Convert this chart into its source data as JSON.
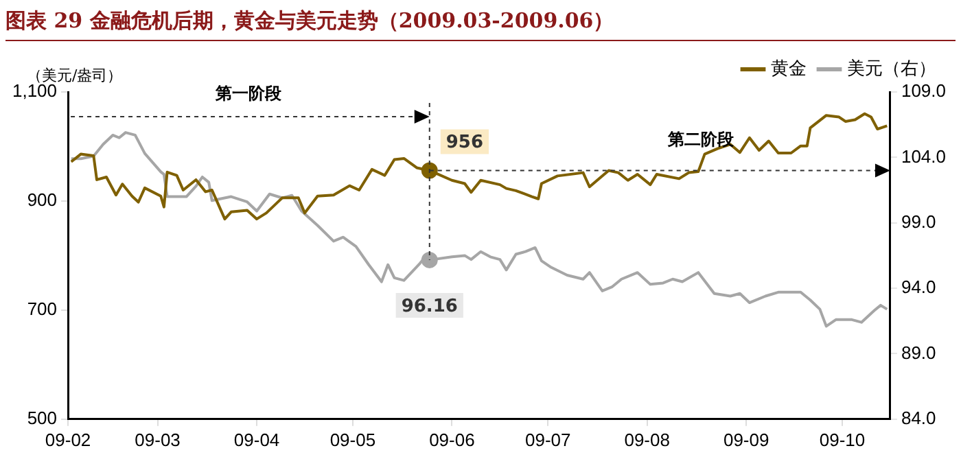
{
  "chart_data": {
    "type": "line",
    "title": "图表 29   金融危机后期，黄金与美元走势（2009.03-2009.06）",
    "ylabel": "（美元/盎司）",
    "legend": "top right",
    "grid": false,
    "marker": "none",
    "line_style": "solid",
    "xlim": [
      "2009-02-01",
      "2009-10-16"
    ],
    "xticks": [
      {
        "value": "2009-02",
        "label": "09-02"
      },
      {
        "value": "2009-03",
        "label": "09-03"
      },
      {
        "value": "2009-04",
        "label": "09-04"
      },
      {
        "value": "2009-05",
        "label": "09-05"
      },
      {
        "value": "2009-06",
        "label": "09-06"
      },
      {
        "value": "2009-07",
        "label": "09-07"
      },
      {
        "value": "2009-08",
        "label": "09-08"
      },
      {
        "value": "2009-09",
        "label": "09-09"
      },
      {
        "value": "2009-10",
        "label": "09-10"
      }
    ],
    "ylim": [
      500,
      1100
    ],
    "yticks": [
      500,
      700,
      900,
      {
        "value": 1100,
        "label": "1,100"
      }
    ],
    "y2lim": [
      84,
      109
    ],
    "y2ticks": [
      {
        "value": 84,
        "label": "84.0"
      },
      {
        "value": 89,
        "label": "89.0"
      },
      {
        "value": 94,
        "label": "94.0"
      },
      {
        "value": 99,
        "label": "99.0"
      },
      {
        "value": 104,
        "label": "104.0"
      },
      {
        "value": 109,
        "label": "109.0"
      }
    ],
    "annotations": [
      "第一阶段",
      "第二阶段"
    ],
    "series": [
      {
        "name": "黄金",
        "color": "#7f6000",
        "x": [
          "2009-02-02",
          "2009-02-05",
          "2009-02-09",
          "2009-02-10",
          "2009-02-13",
          "2009-02-16",
          "2009-02-18",
          "2009-02-21",
          "2009-02-23",
          "2009-02-25",
          "2009-03-02",
          "2009-03-03",
          "2009-03-04",
          "2009-03-07",
          "2009-03-09",
          "2009-03-13",
          "2009-03-16",
          "2009-03-18",
          "2009-03-22",
          "2009-03-24",
          "2009-03-29",
          "2009-04-01",
          "2009-04-04",
          "2009-04-09",
          "2009-04-14",
          "2009-04-16",
          "2009-04-20",
          "2009-04-25",
          "2009-04-30",
          "2009-05-03",
          "2009-05-07",
          "2009-05-11",
          "2009-05-14",
          "2009-05-17",
          "2009-05-21",
          "2009-05-25",
          "2009-06-01",
          "2009-06-05",
          "2009-06-07",
          "2009-06-10",
          "2009-06-16",
          "2009-06-18",
          "2009-06-21",
          "2009-06-26",
          "2009-06-28",
          "2009-06-29",
          "2009-07-04",
          "2009-07-12",
          "2009-07-14",
          "2009-07-20",
          "2009-07-23",
          "2009-07-26",
          "2009-07-29",
          "2009-08-02",
          "2009-08-04",
          "2009-08-11",
          "2009-08-14",
          "2009-08-17",
          "2009-08-19",
          "2009-08-23",
          "2009-08-27",
          "2009-08-30",
          "2009-09-02",
          "2009-09-05",
          "2009-09-08",
          "2009-09-11",
          "2009-09-15",
          "2009-09-18",
          "2009-09-20",
          "2009-09-21",
          "2009-09-26",
          "2009-09-30",
          "2009-10-02",
          "2009-10-05",
          "2009-10-08",
          "2009-10-10",
          "2009-10-12",
          "2009-10-15"
        ],
        "values": [
          972,
          986,
          983,
          939,
          944,
          911,
          931,
          909,
          898,
          924,
          909,
          889,
          953,
          947,
          920,
          939,
          917,
          920,
          867,
          880,
          883,
          867,
          878,
          906,
          906,
          878,
          909,
          911,
          928,
          920,
          958,
          947,
          976,
          978,
          961,
          956,
          938,
          932,
          916,
          938,
          930,
          923,
          919,
          908,
          904,
          932,
          946,
          952,
          926,
          956,
          952,
          938,
          949,
          930,
          949,
          941,
          952,
          954,
          986,
          996,
          1004,
          989,
          1016,
          993,
          1010,
          988,
          988,
          1001,
          1001,
          1034,
          1057,
          1054,
          1046,
          1049,
          1060,
          1054,
          1032,
          1038
        ],
        "value_labels": [
          null,
          null,
          null,
          null,
          null,
          null,
          null,
          null,
          null,
          null,
          null,
          null,
          null,
          null,
          null,
          null,
          null,
          null,
          null,
          null,
          null,
          null,
          null,
          null,
          null,
          null,
          null,
          null,
          null,
          null,
          null,
          null,
          null,
          null,
          null,
          "956",
          null,
          null,
          null,
          null,
          null,
          null,
          null,
          null,
          null,
          null,
          null,
          null,
          null,
          null,
          null,
          null,
          null,
          null,
          null,
          null,
          null,
          null,
          null,
          null,
          null,
          null,
          null,
          null,
          null,
          null,
          null,
          null,
          null,
          null,
          null,
          null,
          null,
          null,
          null,
          null,
          null,
          null
        ]
      },
      {
        "name": "美元（右）",
        "color": "#a6a6a6",
        "axis": "y2",
        "x": [
          "2009-02-02",
          "2009-02-05",
          "2009-02-09",
          "2009-02-12",
          "2009-02-15",
          "2009-02-17",
          "2009-02-19",
          "2009-02-22",
          "2009-02-25",
          "2009-03-02",
          "2009-03-03",
          "2009-03-04",
          "2009-03-10",
          "2009-03-13",
          "2009-03-15",
          "2009-03-17",
          "2009-03-18",
          "2009-03-24",
          "2009-03-29",
          "2009-04-01",
          "2009-04-05",
          "2009-04-09",
          "2009-04-12",
          "2009-04-15",
          "2009-04-20",
          "2009-04-25",
          "2009-04-28",
          "2009-05-02",
          "2009-05-06",
          "2009-05-10",
          "2009-05-12",
          "2009-05-14",
          "2009-05-17",
          "2009-05-22",
          "2009-05-24",
          "2009-05-25",
          "2009-06-01",
          "2009-06-05",
          "2009-06-07",
          "2009-06-10",
          "2009-06-13",
          "2009-06-16",
          "2009-06-18",
          "2009-06-21",
          "2009-06-24",
          "2009-06-27",
          "2009-06-29",
          "2009-07-02",
          "2009-07-07",
          "2009-07-12",
          "2009-07-14",
          "2009-07-18",
          "2009-07-21",
          "2009-07-24",
          "2009-07-29",
          "2009-08-02",
          "2009-08-06",
          "2009-08-09",
          "2009-08-12",
          "2009-08-17",
          "2009-08-22",
          "2009-08-27",
          "2009-08-30",
          "2009-09-02",
          "2009-09-07",
          "2009-09-11",
          "2009-09-18",
          "2009-09-21",
          "2009-09-24",
          "2009-09-26",
          "2009-09-29",
          "2009-10-04",
          "2009-10-07",
          "2009-10-11",
          "2009-10-13",
          "2009-10-15"
        ],
        "values": [
          103.9,
          103.9,
          104.1,
          105.0,
          105.7,
          105.5,
          105.9,
          105.7,
          104.3,
          102.9,
          102.7,
          101.0,
          101.0,
          101.8,
          102.5,
          102.1,
          100.7,
          101.0,
          100.6,
          99.9,
          101.2,
          100.9,
          101.1,
          99.9,
          98.8,
          97.6,
          97.9,
          97.2,
          95.8,
          94.5,
          95.8,
          94.8,
          94.6,
          95.9,
          96.5,
          96.16,
          96.4,
          96.5,
          96.2,
          96.8,
          96.4,
          96.2,
          95.4,
          96.6,
          96.8,
          97.1,
          96.1,
          95.6,
          95.0,
          94.7,
          95.2,
          93.8,
          94.1,
          94.7,
          95.2,
          94.3,
          94.4,
          94.7,
          94.5,
          95.2,
          93.6,
          93.4,
          93.6,
          92.9,
          93.4,
          93.7,
          93.7,
          93.1,
          92.4,
          91.1,
          91.6,
          91.6,
          91.4,
          92.3,
          92.7,
          92.4
        ],
        "value_labels": [
          null,
          null,
          null,
          null,
          null,
          null,
          null,
          null,
          null,
          null,
          null,
          null,
          null,
          null,
          null,
          null,
          null,
          null,
          null,
          null,
          null,
          null,
          null,
          null,
          null,
          null,
          null,
          null,
          null,
          null,
          null,
          null,
          null,
          null,
          null,
          "96.16",
          null,
          null,
          null,
          null,
          null,
          null,
          null,
          null,
          null,
          null,
          null,
          null,
          null,
          null,
          null,
          null,
          null,
          null,
          null,
          null,
          null,
          null,
          null,
          null,
          null,
          null,
          null,
          null,
          null,
          null,
          null,
          null,
          null,
          null,
          null,
          null,
          null,
          null,
          null,
          null
        ]
      }
    ]
  }
}
